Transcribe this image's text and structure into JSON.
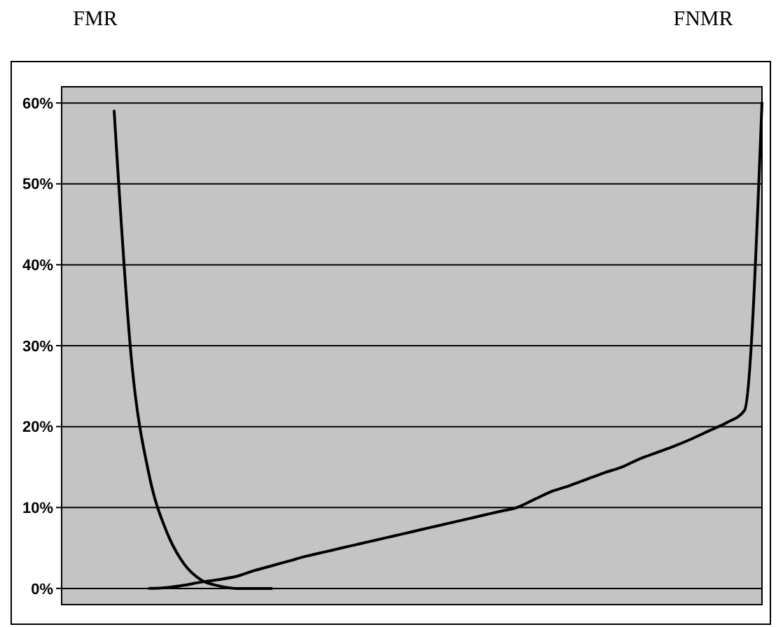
{
  "chart_data": {
    "type": "line",
    "categories": [
      null,
      null,
      null,
      null,
      null,
      null,
      null,
      null,
      null,
      null,
      null,
      null,
      null,
      null,
      null,
      null,
      null,
      null,
      null,
      null,
      null,
      null,
      null,
      null,
      null,
      null,
      null,
      null,
      null,
      null,
      null,
      null,
      null,
      null,
      null,
      null,
      null,
      null,
      null,
      null,
      null
    ],
    "series": [
      {
        "color": "#000000",
        "values": [
          null,
          null,
          null,
          59,
          28,
          14,
          7,
          3,
          1,
          0.3,
          0,
          0,
          0,
          null,
          null,
          null,
          null,
          null,
          null,
          null,
          null,
          null,
          null,
          null,
          null,
          null,
          null,
          null,
          null,
          null,
          null,
          null,
          null,
          null,
          null,
          null,
          null,
          null,
          null,
          null,
          null
        ]
      },
      {
        "color": "#000000",
        "values": [
          null,
          null,
          null,
          null,
          null,
          0,
          0.1,
          0.4,
          0.8,
          1.1,
          1.5,
          2.2,
          2.8,
          3.4,
          4,
          4.5,
          5,
          5.5,
          6,
          6.5,
          7,
          7.5,
          8,
          8.5,
          9,
          9.5,
          10,
          11,
          12,
          12.7,
          13.5,
          14.3,
          15,
          16,
          16.8,
          17.6,
          18.5,
          19.5,
          20.5,
          22,
          60
        ]
      }
    ],
    "ylim": [
      -2,
      62
    ],
    "yticks": [
      {
        "value": 0,
        "label": "0%"
      },
      {
        "value": 10,
        "label": "10%"
      },
      {
        "value": 20,
        "label": "20%"
      },
      {
        "value": 30,
        "label": "30%"
      },
      {
        "value": 40,
        "label": "40%"
      },
      {
        "value": 50,
        "label": "50%"
      },
      {
        "value": 60,
        "label": "60%"
      }
    ],
    "annotations": [
      "FMR",
      "FNMR"
    ],
    "grid": "y",
    "marker": "none",
    "line_style": "solid"
  }
}
